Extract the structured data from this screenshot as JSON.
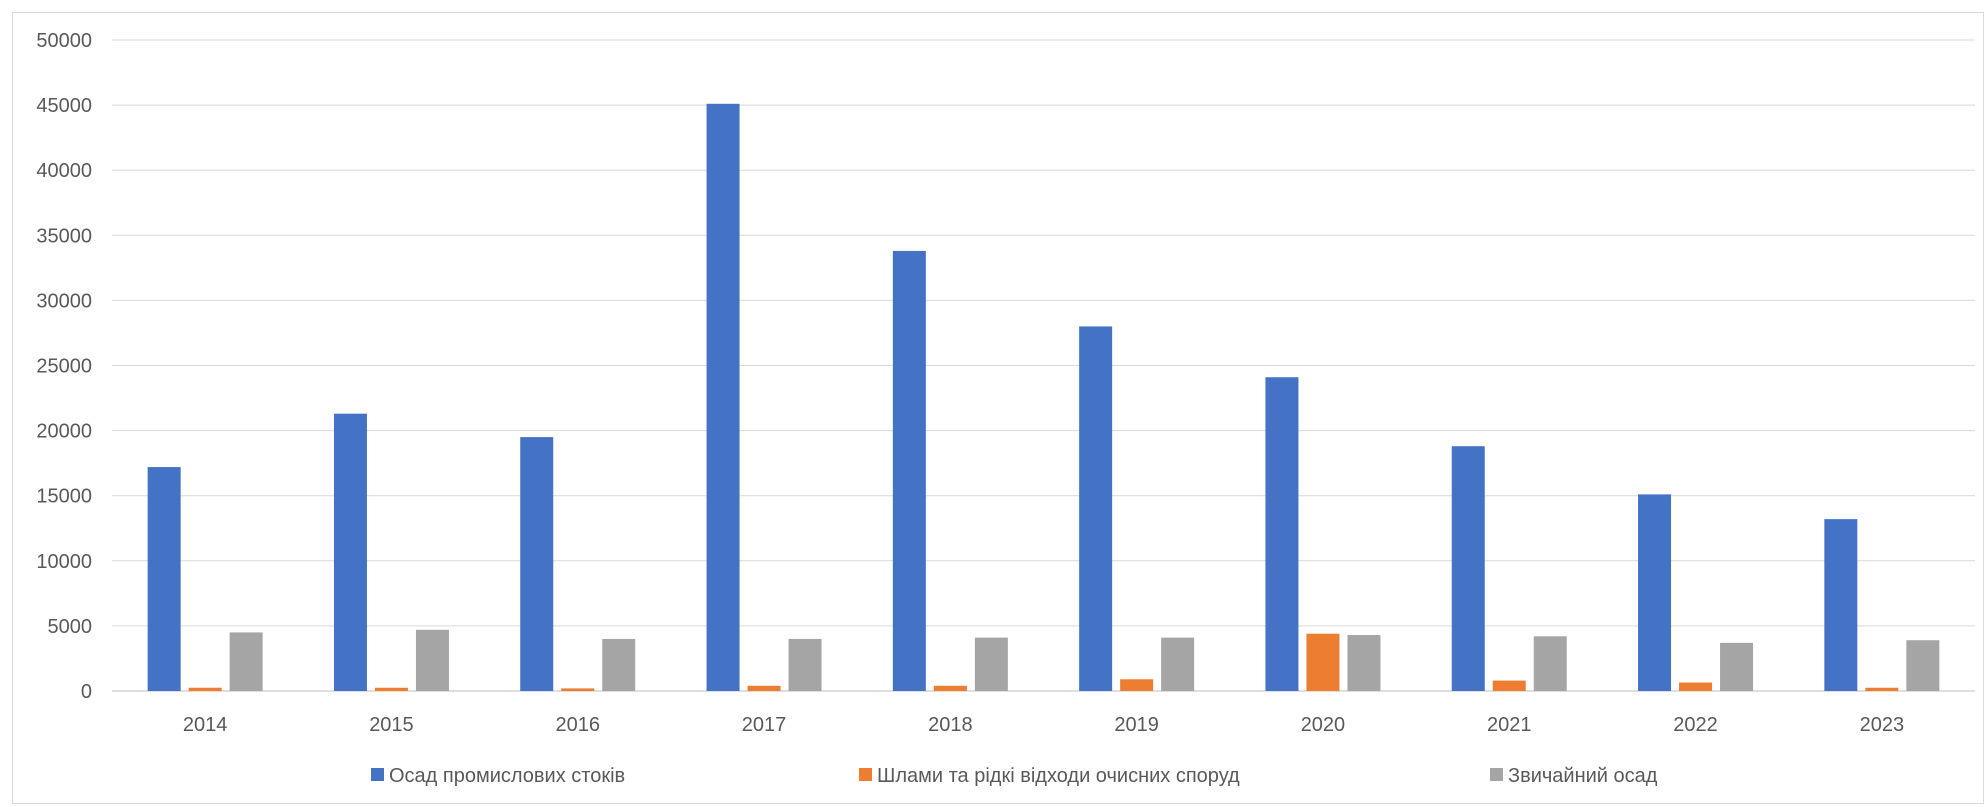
{
  "chart_data": {
    "type": "bar",
    "categories": [
      "2014",
      "2015",
      "2016",
      "2017",
      "2018",
      "2019",
      "2020",
      "2021",
      "2022",
      "2023"
    ],
    "series": [
      {
        "name": "Осад промислових стоків",
        "color": "#4472C4",
        "values": [
          17200,
          21300,
          19500,
          45100,
          33800,
          28000,
          24100,
          18800,
          15100,
          13200
        ]
      },
      {
        "name": "Шлами та рідкі відходи очисних споруд",
        "color": "#ED7D31",
        "values": [
          250,
          250,
          200,
          400,
          400,
          900,
          4400,
          800,
          650,
          250
        ]
      },
      {
        "name": "Звичайний осад",
        "color": "#A5A5A5",
        "values": [
          4500,
          4700,
          4000,
          4000,
          4100,
          4100,
          4300,
          4200,
          3700,
          3900
        ]
      }
    ],
    "ylim": [
      0,
      50000
    ],
    "yticks": [
      0,
      5000,
      10000,
      15000,
      20000,
      25000,
      30000,
      35000,
      40000,
      45000,
      50000
    ],
    "grid": true,
    "legend_position": "bottom"
  }
}
